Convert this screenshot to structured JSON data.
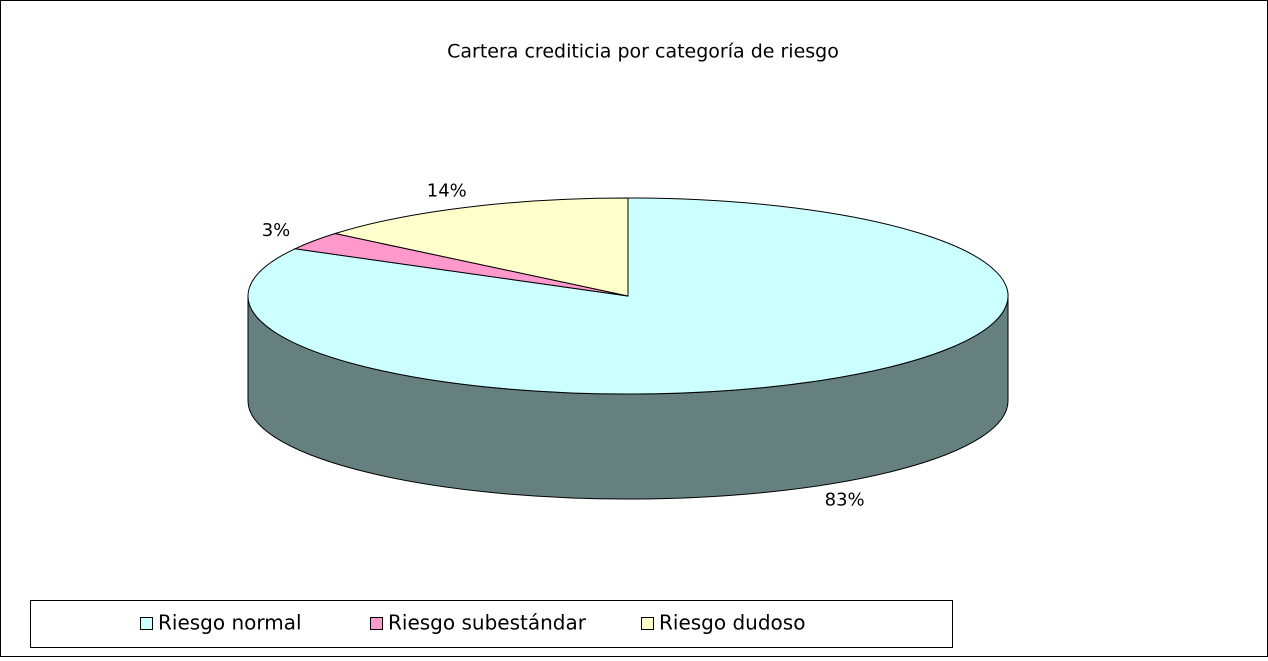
{
  "chart_data": {
    "type": "pie3d",
    "title": "Cartera crediticia por categoría de riesgo",
    "categories": [
      "Riesgo normal",
      "Riesgo subestándar",
      "Riesgo dudoso"
    ],
    "values": [
      83,
      3,
      14
    ],
    "value_labels": [
      "83%",
      "3%",
      "14%"
    ],
    "colors": [
      "#ccffff",
      "#ff99cc",
      "#ffffcc"
    ],
    "side_color": "#668080",
    "legend": "bottom"
  }
}
